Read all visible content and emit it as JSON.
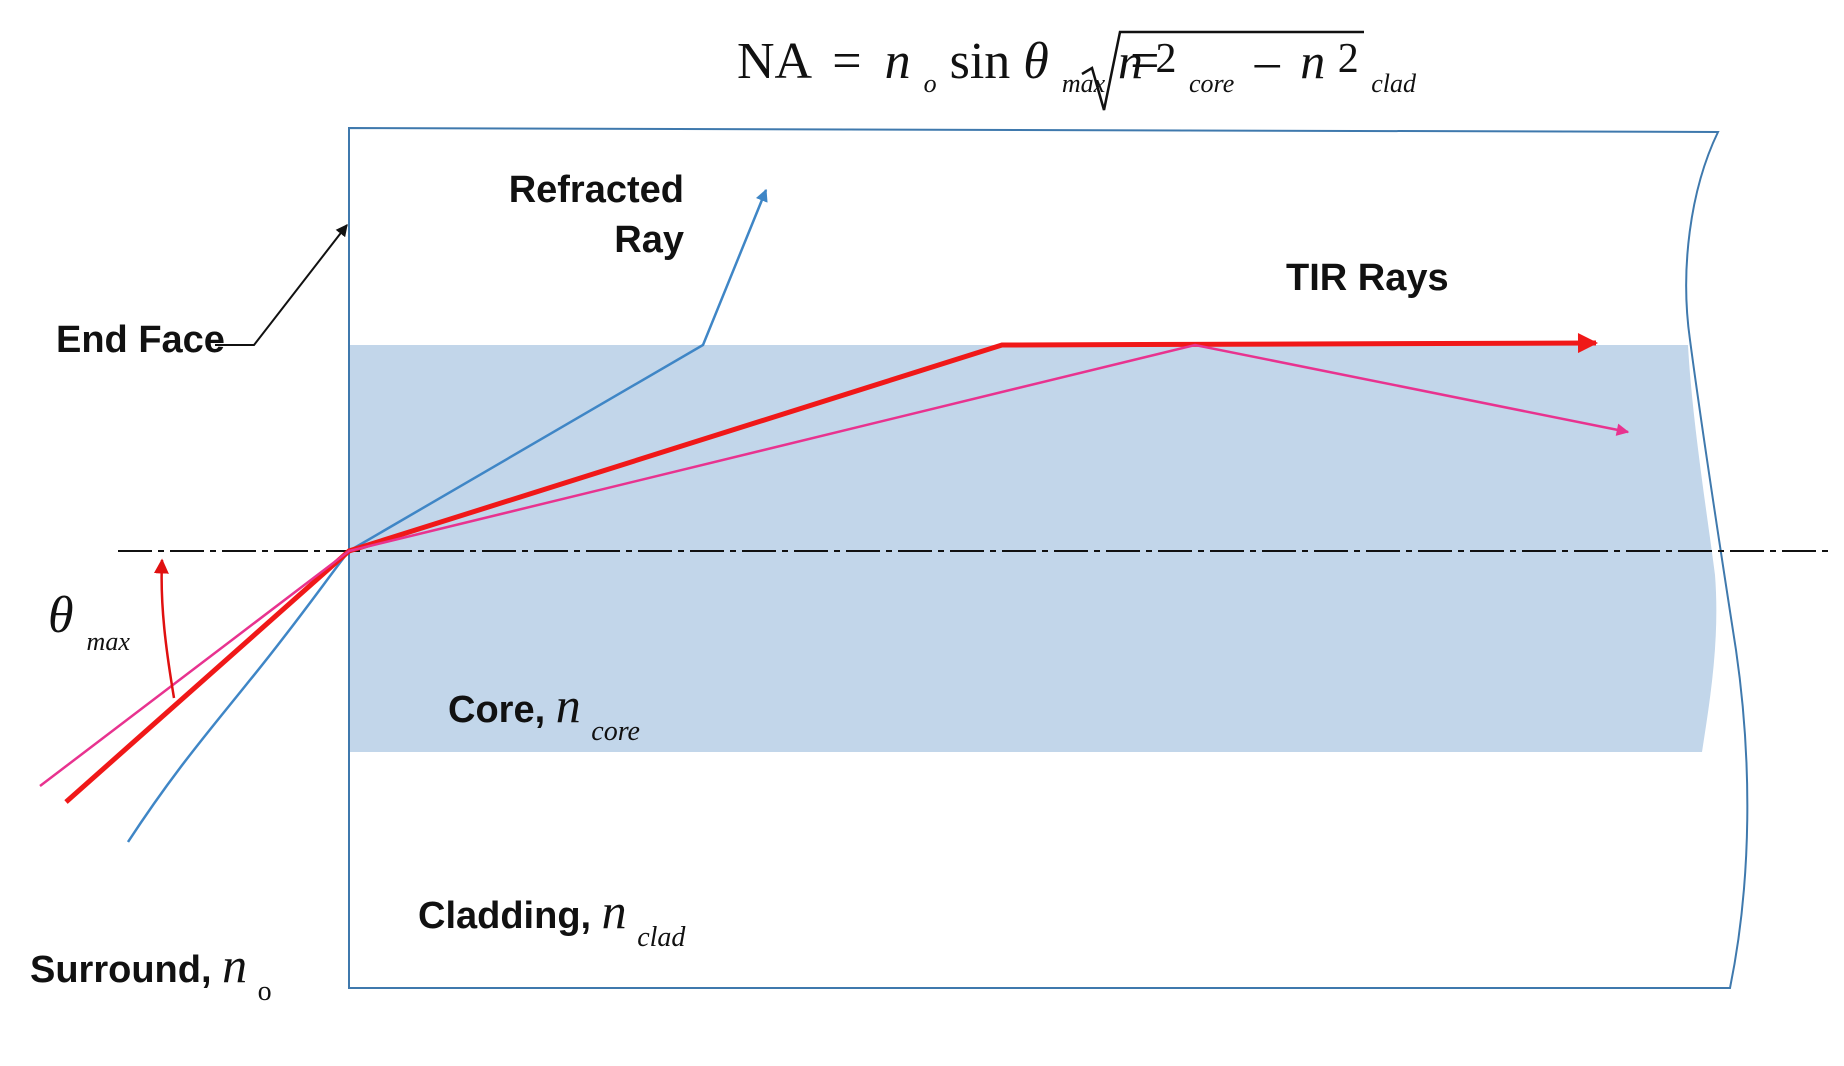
{
  "equation": {
    "na": "NA",
    "eq1": "=",
    "n": "n",
    "n_sub": "o",
    "sin": "sin",
    "theta": "θ",
    "theta_sub": "max",
    "eq2": "=",
    "n_core": "n",
    "sq_core": "2",
    "core_sub": "core",
    "minus": "–",
    "n_clad": "n",
    "sq_clad": "2",
    "clad_sub": "clad"
  },
  "labels": {
    "refracted_line1": "Refracted",
    "refracted_line2": "Ray",
    "tir": "TIR Rays",
    "end_face": "End Face",
    "theta": "θ",
    "theta_sub": "max",
    "core": "Core, ",
    "core_n": "n",
    "core_sub": "core",
    "cladding": "Cladding, ",
    "clad_n": "n",
    "clad_sub": "clad",
    "surround": "Surround, ",
    "surround_n": "n",
    "surround_sub": "o"
  },
  "colors": {
    "core_fill": "#c2d6ea",
    "fiber_outline": "#3f79ad",
    "refracted_ray": "#3f86c6",
    "tir_ray_red": "#f01818",
    "tir_ray_pink": "#e8338f",
    "axis": "#111111"
  }
}
